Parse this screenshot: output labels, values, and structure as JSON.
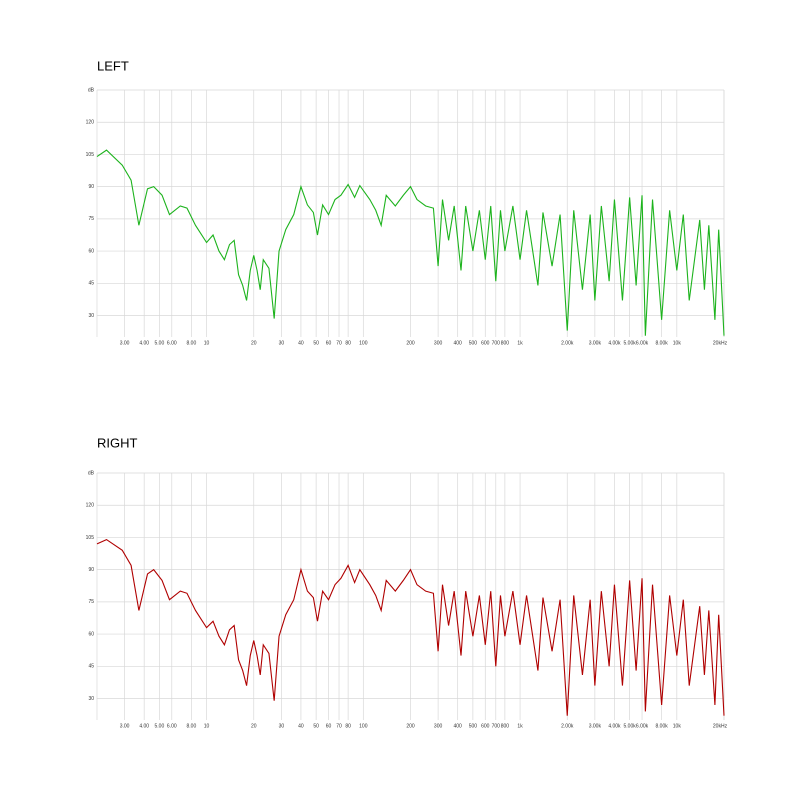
{
  "chart_data": [
    {
      "type": "line",
      "title": "LEFT",
      "y_label": "dB",
      "log_x": true,
      "grid": true,
      "xlim": [
        2,
        20000
      ],
      "ylim": [
        20,
        135
      ],
      "yticks": [
        30,
        45,
        60,
        75,
        90,
        105,
        120
      ],
      "xticks": [
        {
          "value": 3,
          "label": "3.00"
        },
        {
          "value": 4,
          "label": "4.00"
        },
        {
          "value": 5,
          "label": "5.00"
        },
        {
          "value": 6,
          "label": "6.00"
        },
        {
          "value": 8,
          "label": "8.00"
        },
        10,
        20,
        30,
        40,
        50,
        60,
        70,
        80,
        100,
        200,
        300,
        400,
        500,
        600,
        700,
        800,
        {
          "value": 1000,
          "label": "1k"
        },
        {
          "value": 2000,
          "label": "2.00k"
        },
        {
          "value": 3000,
          "label": "3.00k"
        },
        {
          "value": 4000,
          "label": "4.00k"
        },
        {
          "value": 5000,
          "label": "5.00k"
        },
        {
          "value": 6000,
          "label": "6.00k"
        },
        {
          "value": 8000,
          "label": "8.00k"
        },
        {
          "value": 10000,
          "label": "10k"
        },
        {
          "value": 20000,
          "label": "20kHz"
        }
      ],
      "x": [
        2,
        2.3,
        2.9,
        3.3,
        3.7,
        4.2,
        4.6,
        5.2,
        5.8,
        6.8,
        7.5,
        8.5,
        10,
        11,
        12,
        13,
        14,
        15,
        16,
        17,
        18,
        19,
        20,
        21,
        22,
        23,
        25,
        27,
        29,
        32,
        36,
        40,
        44,
        48,
        51,
        55,
        60,
        66,
        72,
        80,
        88,
        95,
        110,
        120,
        130,
        140,
        160,
        180,
        200,
        220,
        250,
        280,
        300,
        320,
        350,
        380,
        420,
        450,
        500,
        550,
        600,
        650,
        700,
        750,
        800,
        900,
        1000,
        1100,
        1300,
        1400,
        1600,
        1800,
        2000,
        2200,
        2500,
        2800,
        3000,
        3300,
        3700,
        4000,
        4500,
        5000,
        5500,
        6000,
        6300,
        7000,
        8000,
        9000,
        10000,
        11000,
        12000,
        14000,
        15000,
        16000,
        17500,
        18500,
        20000
      ],
      "series": [
        {
          "color": "#1db31d",
          "values": [
            104,
            107,
            100,
            93,
            72,
            89,
            90,
            86,
            77,
            81,
            80,
            72,
            64,
            67.5,
            60,
            56,
            63,
            65,
            49,
            44,
            37,
            51,
            58,
            51,
            42,
            56,
            52,
            28.6,
            60,
            70,
            77,
            90,
            81.5,
            78,
            67.5,
            81.5,
            77,
            84,
            86,
            91,
            85,
            90.5,
            84,
            79,
            72,
            86,
            81,
            86,
            90,
            84,
            81,
            80,
            53,
            84,
            65,
            81,
            51,
            81,
            60,
            79,
            56,
            81,
            46,
            79,
            60,
            81,
            56,
            79,
            44,
            78,
            53,
            77,
            23,
            79,
            42,
            77,
            37,
            81,
            46,
            84,
            37,
            85,
            44,
            86,
            20.6,
            84,
            28,
            79,
            51,
            77,
            37,
            74.5,
            42,
            72,
            28,
            70,
            20.6
          ]
        }
      ]
    },
    {
      "type": "line",
      "title": "RIGHT",
      "y_label": "dB",
      "log_x": true,
      "grid": true,
      "xlim": [
        2,
        20000
      ],
      "ylim": [
        20,
        135
      ],
      "yticks": [
        30,
        45,
        60,
        75,
        90,
        105,
        120
      ],
      "xticks": [
        {
          "value": 3,
          "label": "3.00"
        },
        {
          "value": 4,
          "label": "4.00"
        },
        {
          "value": 5,
          "label": "5.00"
        },
        {
          "value": 6,
          "label": "6.00"
        },
        {
          "value": 8,
          "label": "8.00"
        },
        10,
        20,
        30,
        40,
        50,
        60,
        70,
        80,
        100,
        200,
        300,
        400,
        500,
        600,
        700,
        800,
        {
          "value": 1000,
          "label": "1k"
        },
        {
          "value": 2000,
          "label": "2.00k"
        },
        {
          "value": 3000,
          "label": "3.00k"
        },
        {
          "value": 4000,
          "label": "4.00k"
        },
        {
          "value": 5000,
          "label": "5.00k"
        },
        {
          "value": 6000,
          "label": "6.00k"
        },
        {
          "value": 8000,
          "label": "8.00k"
        },
        {
          "value": 10000,
          "label": "10k"
        },
        {
          "value": 20000,
          "label": "20kHz"
        }
      ],
      "x": [
        2,
        2.3,
        2.9,
        3.3,
        3.7,
        4.2,
        4.6,
        5.2,
        5.8,
        6.8,
        7.5,
        8.5,
        10,
        11,
        12,
        13,
        14,
        15,
        16,
        17,
        18,
        19,
        20,
        21,
        22,
        23,
        25,
        27,
        29,
        32,
        36,
        40,
        44,
        48,
        51,
        55,
        60,
        66,
        72,
        80,
        88,
        95,
        110,
        120,
        130,
        140,
        160,
        180,
        200,
        220,
        250,
        280,
        300,
        320,
        350,
        380,
        420,
        450,
        500,
        550,
        600,
        650,
        700,
        750,
        800,
        900,
        1000,
        1100,
        1300,
        1400,
        1600,
        1800,
        2000,
        2200,
        2500,
        2800,
        3000,
        3300,
        3700,
        4000,
        4500,
        5000,
        5500,
        6000,
        6300,
        7000,
        8000,
        9000,
        10000,
        11000,
        12000,
        14000,
        15000,
        16000,
        17500,
        18500,
        20000
      ],
      "series": [
        {
          "color": "#b00000",
          "values": [
            102,
            104,
            99,
            92,
            71,
            88,
            90,
            85,
            76,
            80,
            79,
            71,
            63,
            66,
            59,
            55,
            62,
            64,
            48,
            43,
            36,
            50,
            57,
            50,
            41,
            55,
            51,
            29,
            59,
            69,
            76,
            90,
            80,
            77,
            66,
            80,
            76,
            83,
            86,
            92,
            84,
            90,
            83,
            78,
            71,
            85,
            80,
            85,
            90,
            83,
            80,
            79,
            52,
            83,
            64,
            80,
            50,
            80,
            59,
            78,
            55,
            80,
            45,
            78,
            59,
            80,
            55,
            78,
            43,
            77,
            52,
            76,
            22,
            78,
            41,
            76,
            36,
            80,
            45,
            83,
            36,
            85,
            43,
            86,
            24,
            83,
            27,
            78,
            50,
            76,
            36,
            73,
            41,
            71,
            27,
            69,
            22
          ]
        }
      ]
    }
  ]
}
